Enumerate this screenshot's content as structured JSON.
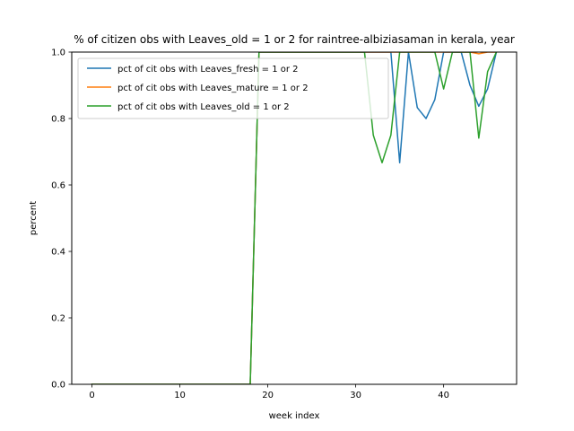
{
  "chart_data": {
    "type": "line",
    "title": "% of citizen obs with Leaves_old = 1 or 2 for raintree-albiziasaman in kerala, year",
    "xlabel": "week index",
    "ylabel": "percent",
    "xlim": [
      -2.3,
      48.3
    ],
    "ylim": [
      0,
      1.0
    ],
    "xticks": [
      0,
      10,
      20,
      30,
      40
    ],
    "yticks": [
      0.0,
      0.2,
      0.4,
      0.6,
      0.8,
      1.0
    ],
    "xtick_labels": [
      "0",
      "10",
      "20",
      "30",
      "40"
    ],
    "ytick_labels": [
      "0.0",
      "0.2",
      "0.4",
      "0.6",
      "0.8",
      "1.0"
    ],
    "grid": false,
    "legend_position": "top-left",
    "series": [
      {
        "name": "pct of cit obs with Leaves_fresh = 1 or 2",
        "color": "#1f77b4",
        "x": [
          0,
          1,
          2,
          3,
          4,
          5,
          6,
          7,
          8,
          9,
          10,
          11,
          12,
          13,
          14,
          15,
          16,
          17,
          18,
          19,
          20,
          21,
          22,
          23,
          24,
          25,
          26,
          27,
          28,
          29,
          30,
          31,
          32,
          33,
          34,
          35,
          36,
          37,
          38,
          39,
          40,
          41,
          42,
          43,
          44,
          45,
          46
        ],
        "y": [
          0,
          0,
          0,
          0,
          0,
          0,
          0,
          0,
          0,
          0,
          0,
          0,
          0,
          0,
          0,
          0,
          0,
          0,
          0,
          1,
          1,
          1,
          1,
          1,
          1,
          1,
          1,
          1,
          1,
          1,
          1,
          1,
          1,
          1,
          1,
          0.667,
          1,
          0.833,
          0.8,
          0.857,
          1,
          1,
          1,
          0.9,
          0.837,
          0.889,
          1
        ]
      },
      {
        "name": "pct of cit obs with Leaves_mature = 1 or 2",
        "color": "#ff7f0e",
        "x": [
          0,
          1,
          2,
          3,
          4,
          5,
          6,
          7,
          8,
          9,
          10,
          11,
          12,
          13,
          14,
          15,
          16,
          17,
          18,
          19,
          20,
          21,
          22,
          23,
          24,
          25,
          26,
          27,
          28,
          29,
          30,
          31,
          32,
          33,
          34,
          35,
          36,
          37,
          38,
          39,
          40,
          41,
          42,
          43,
          44,
          45,
          46
        ],
        "y": [
          0,
          0,
          0,
          0,
          0,
          0,
          0,
          0,
          0,
          0,
          0,
          0,
          0,
          0,
          0,
          0,
          0,
          0,
          0,
          1,
          1,
          1,
          1,
          1,
          1,
          1,
          1,
          1,
          1,
          1,
          1,
          1,
          1,
          1,
          1,
          1,
          1,
          1,
          1,
          1,
          1,
          1,
          1,
          1,
          0.995,
          1,
          1
        ]
      },
      {
        "name": "pct of cit obs with Leaves_old = 1 or 2",
        "color": "#2ca02c",
        "x": [
          0,
          1,
          2,
          3,
          4,
          5,
          6,
          7,
          8,
          9,
          10,
          11,
          12,
          13,
          14,
          15,
          16,
          17,
          18,
          19,
          20,
          21,
          22,
          23,
          24,
          25,
          26,
          27,
          28,
          29,
          30,
          31,
          32,
          33,
          34,
          35,
          36,
          37,
          38,
          39,
          40,
          41,
          42,
          43,
          44,
          45,
          46
        ],
        "y": [
          0,
          0,
          0,
          0,
          0,
          0,
          0,
          0,
          0,
          0,
          0,
          0,
          0,
          0,
          0,
          0,
          0,
          0,
          0,
          1,
          1,
          1,
          1,
          1,
          1,
          1,
          1,
          1,
          1,
          1,
          1,
          1,
          0.75,
          0.667,
          0.75,
          1,
          1,
          1,
          1,
          1,
          0.889,
          1,
          1,
          1,
          0.741,
          0.941,
          1
        ]
      }
    ]
  }
}
